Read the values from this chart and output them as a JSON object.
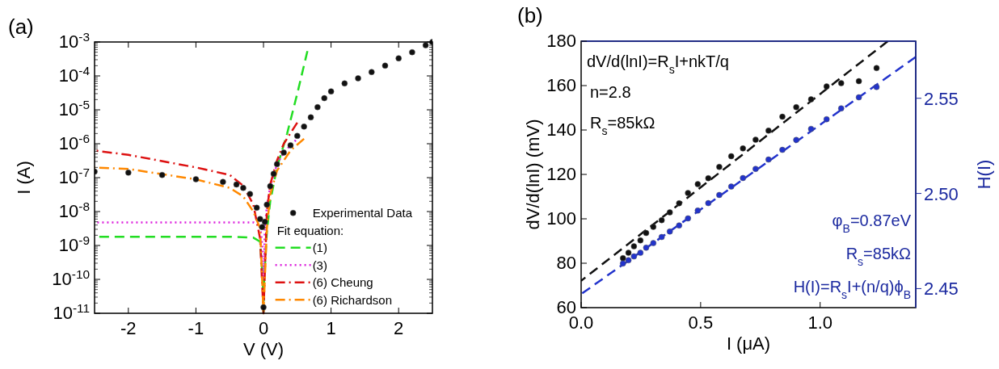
{
  "chart_data": [
    {
      "type": "line",
      "title": "(a)",
      "xlabel": "V (V)",
      "ylabel": "I (A)",
      "log": "y",
      "legend": "bottom right",
      "legend_title": "Fit equation:",
      "xlim": [
        -2.5,
        2.5
      ],
      "xticks": [
        -2,
        -1,
        0,
        1,
        2
      ],
      "ylim": [
        1e-11,
        0.001
      ],
      "yticks": [
        {
          "value": 1e-11,
          "label": "10$^{-11}$"
        },
        {
          "value": 1e-10,
          "label": "10$^{-10}$"
        },
        {
          "value": 1e-09,
          "label": "10$^{-9}$"
        },
        {
          "value": 1e-08,
          "label": "10$^{-8}$"
        },
        {
          "value": 1e-07,
          "label": "10$^{-7}$"
        },
        {
          "value": 1e-06,
          "label": "10$^{-6}$"
        },
        {
          "value": 1e-05,
          "label": "10$^{-5}$"
        },
        {
          "value": 0.0001,
          "label": "10$^{-4}$"
        },
        {
          "value": 0.001,
          "label": "10$^{-3}$"
        }
      ],
      "series": [
        {
          "name": "Experimental Data",
          "type": "scatter",
          "marker": "circle",
          "color": "#111111",
          "x": [
            -2.5,
            -2,
            -1.5,
            -1,
            -0.6,
            -0.4,
            -0.3,
            -0.2,
            -0.1,
            -0.05,
            -0.02,
            0,
            0.02,
            0.05,
            0.1,
            0.15,
            0.2,
            0.3,
            0.4,
            0.5,
            0.6,
            0.7,
            0.8,
            0.9,
            1.0,
            1.2,
            1.4,
            1.6,
            1.8,
            2.0,
            2.2,
            2.4,
            2.5
          ],
          "values": [
            1.5e-07,
            1.4e-07,
            1.2e-07,
            9e-08,
            7.5e-08,
            6.3e-08,
            5e-08,
            3.3e-08,
            1.3e-08,
            6e-09,
            3.5e-09,
            1.5e-11,
            5e-09,
            1.6e-08,
            5.6e-08,
            1.3e-07,
            2.5e-07,
            5.5e-07,
            9e-07,
            1.7e-06,
            3.2e-06,
            6e-06,
            1.2e-05,
            2.2e-05,
            3.5e-05,
            6e-05,
            8.5e-05,
            0.00013,
            0.0002,
            0.00033,
            0.0005,
            0.0008,
            0.001
          ]
        },
        {
          "name": "(1)",
          "line_style": "dashed",
          "color": "#22dd22",
          "x": [
            -2.5,
            -0.5,
            -0.15,
            -0.05,
            -0.01,
            0,
            0.01,
            0.05,
            0.1,
            0.2,
            0.35,
            0.5,
            0.65
          ],
          "values": [
            1.8e-09,
            1.8e-09,
            1.7e-09,
            1.3e-09,
            1e-10,
            1e-11,
            1e-10,
            2.5e-09,
            2e-08,
            2e-07,
            2e-06,
            3e-05,
            0.00054
          ]
        },
        {
          "name": "(3)",
          "line_style": "dotted",
          "color": "#dd22dd",
          "x": [
            -2.5,
            -0.15,
            -0.05,
            -0.01,
            0,
            0.02,
            0.05,
            0.1,
            0.2,
            0.3,
            0.4,
            0.53
          ],
          "values": [
            4.8e-09,
            4.8e-09,
            4e-09,
            8e-10,
            1e-10,
            3e-09,
            1.5e-08,
            5.5e-08,
            2.5e-07,
            5.5e-07,
            9e-07,
            1.6e-06
          ]
        },
        {
          "name": "(6) Cheung",
          "line_style": "dashdot",
          "color": "#dd1111",
          "x": [
            -2.5,
            -2,
            -1,
            -0.5,
            -0.3,
            -0.15,
            -0.05,
            0,
            0.05,
            0.1,
            0.2,
            0.3,
            0.5
          ],
          "values": [
            6.3e-07,
            4.7e-07,
            2e-07,
            1.2e-07,
            5.8e-08,
            1.6e-08,
            1.6e-09,
            1e-11,
            1e-08,
            6.3e-08,
            3.2e-07,
            1e-06,
            4.2e-06
          ]
        },
        {
          "name": "(6) Richardson",
          "line_style": "dashdot",
          "color": "#ff8800",
          "x": [
            -2.5,
            -2,
            -1,
            -0.5,
            -0.3,
            -0.15,
            -0.05,
            0,
            0.05,
            0.1,
            0.2,
            0.4,
            0.6
          ],
          "values": [
            2e-07,
            1.8e-07,
            8.9e-08,
            5e-08,
            2.8e-08,
            1e-08,
            3.2e-09,
            1e-11,
            3.2e-09,
            3.2e-08,
            1.6e-07,
            6.3e-07,
            1.4e-06
          ]
        }
      ]
    },
    {
      "type": "scatter",
      "title": "(b)",
      "xlabel": "I (μA)",
      "ylabel": "dV/d(lnI) (mV)",
      "y2label": "H(I)",
      "xlim": [
        0,
        1.4
      ],
      "xticks": [
        {
          "value": 0,
          "label": "0.0"
        },
        {
          "value": 0.5,
          "label": "0.5"
        },
        {
          "value": 1,
          "label": "1.0"
        }
      ],
      "ylim": [
        60,
        180
      ],
      "yticks": [
        60,
        80,
        100,
        120,
        140,
        160,
        180
      ],
      "y2lim": [
        2.44,
        2.58
      ],
      "y2ticks": [
        {
          "value": 2.45,
          "label": "2.45"
        },
        {
          "value": 2.5,
          "label": "2.50"
        },
        {
          "value": 2.55,
          "label": "2.55"
        }
      ],
      "annotations": [
        "dV/d(lnI)=R$_{s}$I+nkT/q",
        "n=2.8",
        "R$_{s}$=85kΩ",
        "φ$_{B}$=0.87eV",
        "R$_{s}$=85kΩ",
        "H(I)=R$_{s}$I+(n/q)ϕ$_{B}$"
      ],
      "series": [
        {
          "marker": "circle",
          "color": "#111111",
          "x": [
            0.175,
            0.198,
            0.221,
            0.248,
            0.272,
            0.302,
            0.337,
            0.371,
            0.41,
            0.447,
            0.488,
            0.532,
            0.578,
            0.628,
            0.677,
            0.73,
            0.784,
            0.842,
            0.9,
            0.962,
            1.027,
            1.088,
            1.162,
            1.236
          ],
          "values": [
            82.3,
            84.7,
            87.6,
            90.3,
            93.6,
            96.4,
            99.4,
            102.9,
            107.0,
            111.6,
            115.6,
            118.3,
            123.4,
            128.2,
            131.7,
            135.6,
            139.7,
            146.0,
            150.3,
            153.8,
            159.6,
            161.1,
            162.0,
            167.9
          ]
        },
        {
          "type": "line",
          "line_style": "dashed",
          "color": "#111111",
          "x": [
            0,
            1.283
          ],
          "values": [
            72.1,
            180
          ]
        },
        {
          "marker": "circle",
          "axis": "y2",
          "color": "#2233cc",
          "x": [
            0.175,
            0.198,
            0.221,
            0.248,
            0.272,
            0.302,
            0.337,
            0.371,
            0.41,
            0.447,
            0.488,
            0.532,
            0.578,
            0.628,
            0.677,
            0.73,
            0.784,
            0.842,
            0.9,
            0.962,
            1.027,
            1.088,
            1.162,
            1.236
          ],
          "values": [
            2.4632,
            2.4649,
            2.4669,
            2.4688,
            2.4715,
            2.4739,
            2.4771,
            2.48,
            2.4832,
            2.4869,
            2.491,
            2.4949,
            2.4992,
            2.5036,
            2.5081,
            2.5129,
            2.5178,
            2.5229,
            2.5281,
            2.5339,
            2.539,
            2.5447,
            2.5505,
            2.5559
          ]
        },
        {
          "type": "line",
          "line_style": "dashed",
          "axis": "y2",
          "color": "#2233cc",
          "x": [
            0,
            1.4
          ],
          "values": [
            2.4471,
            2.5717
          ]
        }
      ]
    }
  ]
}
